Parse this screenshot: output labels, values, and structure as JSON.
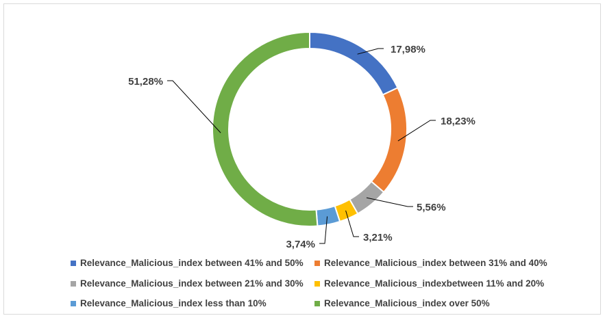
{
  "chart_data": {
    "type": "pie",
    "variant": "doughnut",
    "title": "",
    "series": [
      {
        "name": "Relevance_Malicious_index between 41% and 50%",
        "value": 17.98,
        "label": "17,98%",
        "color": "#4472c4"
      },
      {
        "name": "Relevance_Malicious_index between 31% and 40%",
        "value": 18.23,
        "label": "18,23%",
        "color": "#ed7d31"
      },
      {
        "name": "Relevance_Malicious_index between 21% and 30%",
        "value": 5.56,
        "label": "5,56%",
        "color": "#a5a5a5"
      },
      {
        "name": "Relevance_Malicious_indexbetween 11% and 20%",
        "value": 3.21,
        "label": "3,21%",
        "color": "#ffc000"
      },
      {
        "name": "Relevance_Malicious_index less than 10%",
        "value": 3.74,
        "label": "3,74%",
        "color": "#5b9bd5"
      },
      {
        "name": "Relevance_Malicious_index over 50%",
        "value": 51.28,
        "label": "51,28%",
        "color": "#70ad47"
      }
    ],
    "legend_position": "bottom"
  }
}
